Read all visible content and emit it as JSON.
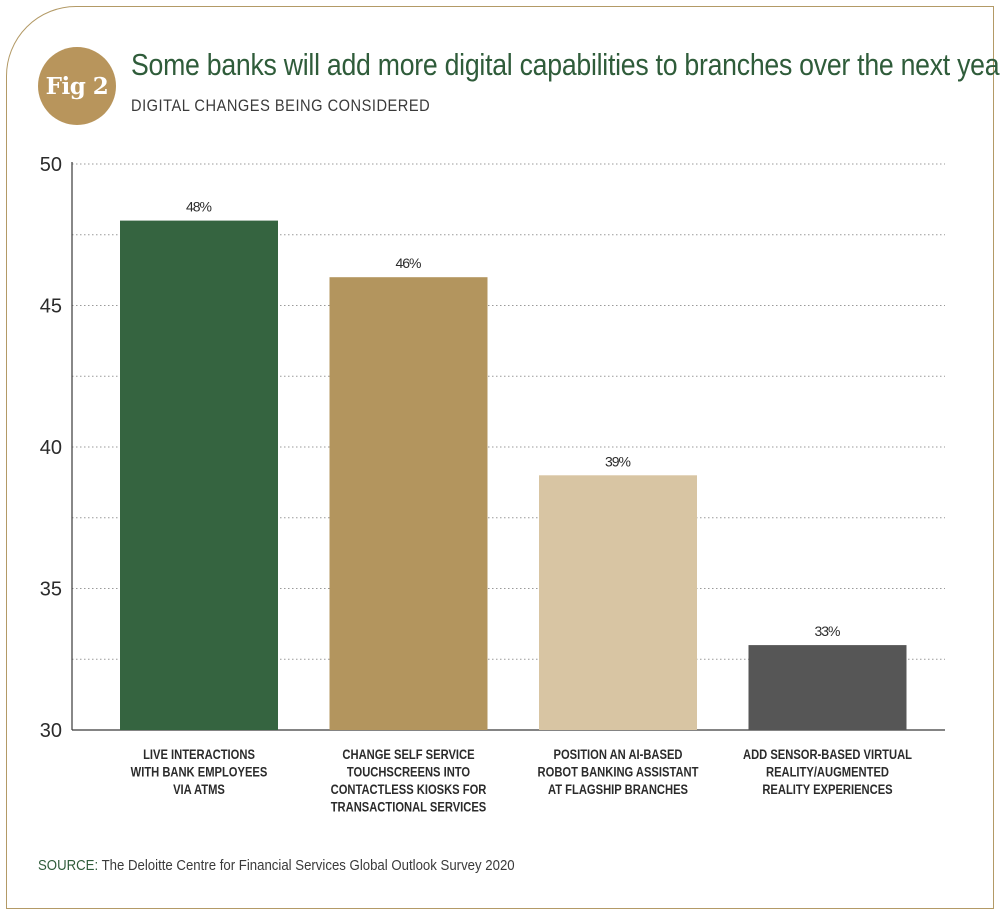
{
  "badge": "Fig 2",
  "header": {
    "title": "Some banks will add more digital capabilities to branches over the next year",
    "subtitle": "DIGITAL CHANGES BEING CONSIDERED"
  },
  "footer": {
    "source_label": "SOURCE:",
    "source_text": "The Deloitte Centre for Financial Services Global Outlook Survey 2020"
  },
  "chart_data": {
    "type": "bar",
    "title": "Some banks will add more digital capabilities to branches over the next year",
    "subtitle": "DIGITAL CHANGES BEING CONSIDERED",
    "categories": [
      [
        "LIVE INTERACTIONS",
        "WITH BANK EMPLOYEES",
        "VIA ATMS"
      ],
      [
        "CHANGE SELF SERVICE",
        "TOUCHSCREENS INTO",
        "CONTACTLESS KIOSKS FOR",
        "TRANSACTIONAL SERVICES"
      ],
      [
        "POSITION AN AI-BASED",
        "ROBOT BANKING ASSISTANT",
        "AT FLAGSHIP BRANCHES"
      ],
      [
        "ADD SENSOR-BASED VIRTUAL",
        "REALITY/AUGMENTED",
        "REALITY EXPERIENCES"
      ]
    ],
    "values": [
      48,
      46,
      39,
      33
    ],
    "data_labels": [
      "48%",
      "46%",
      "39%",
      "33%"
    ],
    "bar_colors": [
      "#356440",
      "#b3955e",
      "#d8c5a3",
      "#565656"
    ],
    "ylim": [
      30,
      50
    ],
    "yticks": [
      30,
      35,
      40,
      45,
      50
    ],
    "minor_grid_step": 2.5,
    "grid": true,
    "xlabel": "",
    "ylabel": ""
  },
  "colors": {
    "accent_green": "#2f5c3a",
    "accent_gold": "#b8955c",
    "frame": "#b39a66"
  }
}
